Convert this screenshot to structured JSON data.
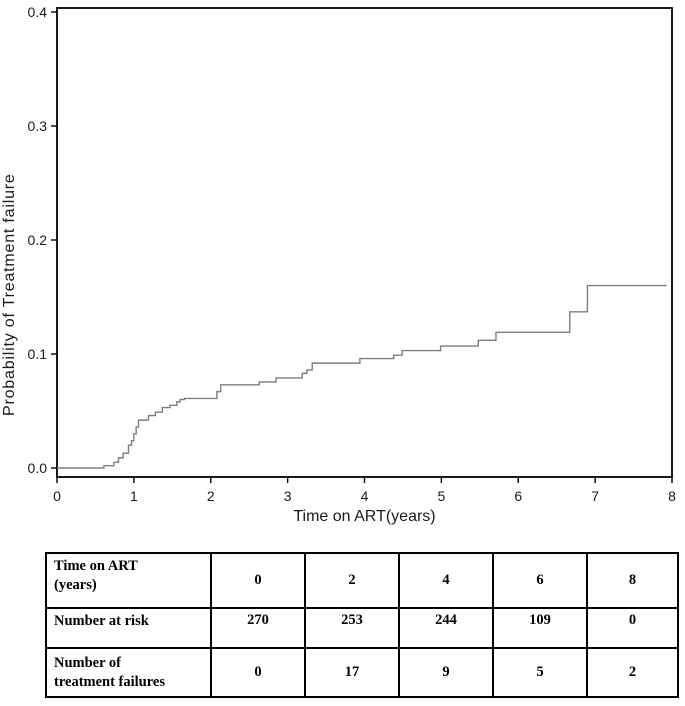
{
  "chart_data": {
    "type": "line",
    "subtype": "step_function_cumulative_incidence",
    "title": "",
    "xlabel": "Time on ART(years)",
    "ylabel": "Probability of Treatment failure",
    "xlim": [
      0,
      8
    ],
    "ylim": [
      0.0,
      0.4
    ],
    "x_ticks": [
      "0",
      "1",
      "2",
      "3",
      "4",
      "5",
      "6",
      "7",
      "8"
    ],
    "y_ticks": [
      "0.0",
      "0.1",
      "0.2",
      "0.3",
      "0.4"
    ],
    "grid": false,
    "legend": "none",
    "line_color": "#7e7e7e",
    "axis_color": "#000000",
    "tick_label_color": "#1a1a1a",
    "series_name": "Probability of treatment failure",
    "steps": [
      [
        0.0,
        0.0
      ],
      [
        0.61,
        0.002
      ],
      [
        0.74,
        0.005
      ],
      [
        0.8,
        0.009
      ],
      [
        0.86,
        0.013
      ],
      [
        0.93,
        0.02
      ],
      [
        0.97,
        0.024
      ],
      [
        1.0,
        0.03
      ],
      [
        1.03,
        0.036
      ],
      [
        1.06,
        0.042
      ],
      [
        1.19,
        0.046
      ],
      [
        1.28,
        0.049
      ],
      [
        1.37,
        0.053
      ],
      [
        1.47,
        0.055
      ],
      [
        1.56,
        0.058
      ],
      [
        1.6,
        0.06
      ],
      [
        1.66,
        0.061
      ],
      [
        2.08,
        0.067
      ],
      [
        2.13,
        0.073
      ],
      [
        2.63,
        0.0755
      ],
      [
        2.85,
        0.079
      ],
      [
        3.19,
        0.083
      ],
      [
        3.25,
        0.086
      ],
      [
        3.32,
        0.092
      ],
      [
        3.94,
        0.096
      ],
      [
        4.38,
        0.099
      ],
      [
        4.49,
        0.103
      ],
      [
        4.99,
        0.107
      ],
      [
        5.48,
        0.112
      ],
      [
        5.71,
        0.119
      ],
      [
        6.67,
        0.137
      ],
      [
        6.9,
        0.16
      ]
    ],
    "x_end": 7.93
  },
  "risk_table": {
    "rows": [
      {
        "label": "Time on ART\n(years)",
        "values": [
          "0",
          "2",
          "4",
          "6",
          "8"
        ]
      },
      {
        "label": "Number at risk",
        "values": [
          "270",
          "253",
          "244",
          "109",
          "0"
        ]
      },
      {
        "label": "Number of\ntreatment failures",
        "values": [
          "0",
          "17",
          "9",
          "5",
          "2"
        ]
      }
    ]
  }
}
